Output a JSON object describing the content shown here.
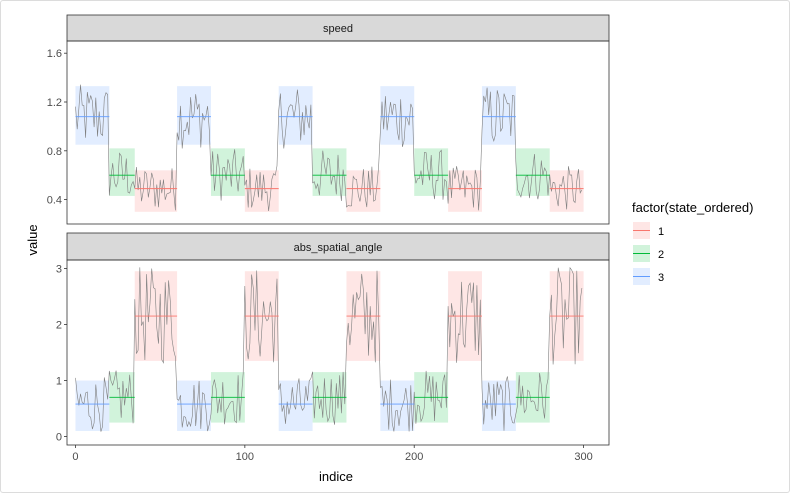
{
  "chart_data": {
    "type": "line",
    "xlabel": "indice",
    "ylabel": "value",
    "xlim": [
      -5,
      315
    ],
    "x_ticks": [
      0,
      100,
      200,
      300
    ],
    "x_tick_labels": [
      "0",
      "100",
      "200",
      "300"
    ],
    "legend": {
      "title": "factor(state_ordered)",
      "placement": "right",
      "entries": [
        {
          "label": "1",
          "color": "#F8766D"
        },
        {
          "label": "2",
          "color": "#00BA38"
        },
        {
          "label": "3",
          "color": "#619CFF"
        }
      ]
    },
    "segments": [
      {
        "start": 0,
        "end": 20,
        "state": 3
      },
      {
        "start": 20,
        "end": 35,
        "state": 2
      },
      {
        "start": 35,
        "end": 60,
        "state": 1
      },
      {
        "start": 60,
        "end": 80,
        "state": 3
      },
      {
        "start": 80,
        "end": 100,
        "state": 2
      },
      {
        "start": 100,
        "end": 120,
        "state": 1
      },
      {
        "start": 120,
        "end": 140,
        "state": 3
      },
      {
        "start": 140,
        "end": 160,
        "state": 2
      },
      {
        "start": 160,
        "end": 180,
        "state": 1
      },
      {
        "start": 180,
        "end": 200,
        "state": 3
      },
      {
        "start": 200,
        "end": 220,
        "state": 2
      },
      {
        "start": 220,
        "end": 240,
        "state": 1
      },
      {
        "start": 240,
        "end": 260,
        "state": 3
      },
      {
        "start": 260,
        "end": 280,
        "state": 2
      },
      {
        "start": 280,
        "end": 300,
        "state": 1
      }
    ],
    "panels": [
      {
        "strip": "speed",
        "ylim": [
          0.2,
          1.7
        ],
        "y_ticks": [
          0.4,
          0.8,
          1.2,
          1.6
        ],
        "y_tick_labels": [
          "0.4",
          "0.8",
          "1.2",
          "1.6"
        ],
        "state_means": {
          "1": 0.49,
          "2": 0.6,
          "3": 1.08
        },
        "state_bands": {
          "1": [
            0.3,
            0.64
          ],
          "2": [
            0.43,
            0.82
          ],
          "3": [
            0.85,
            1.33
          ]
        }
      },
      {
        "strip": "abs_spatial_angle",
        "ylim": [
          -0.15,
          3.15
        ],
        "y_ticks": [
          0,
          1,
          2,
          3
        ],
        "y_tick_labels": [
          "0",
          "1",
          "2",
          "3"
        ],
        "state_means": {
          "1": 2.15,
          "2": 0.7,
          "3": 0.58
        },
        "state_bands": {
          "1": [
            1.35,
            2.95
          ],
          "2": [
            0.25,
            1.15
          ],
          "3": [
            0.1,
            1.0
          ]
        }
      }
    ]
  }
}
